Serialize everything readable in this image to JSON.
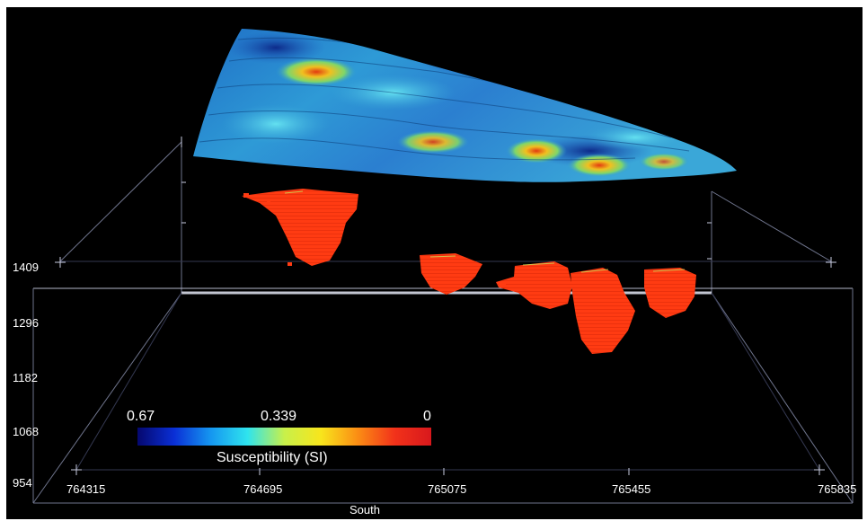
{
  "figure": {
    "z_axis": {
      "ticks": [
        "1409",
        "1296",
        "1182",
        "1068",
        "954"
      ]
    },
    "x_axis": {
      "ticks": [
        "764315",
        "764695",
        "765075",
        "765455",
        "765835"
      ],
      "label": "South"
    },
    "colorbar": {
      "label": "Susceptibility (SI)",
      "max_label": "0.67",
      "mid_label": "0.339",
      "min_label": "0",
      "colors": [
        "#05086e",
        "#0a2fd6",
        "#1597f0",
        "#2fe4ee",
        "#c8f04a",
        "#f8e51c",
        "#fb8d14",
        "#f2321a",
        "#d8181c"
      ]
    },
    "surface_colors": {
      "base": "#2c86d8",
      "low": "#123a9a",
      "mid": "#45c6ee",
      "high": "#e8b020"
    },
    "body_color": "#ff3b12",
    "box_color": "#8a8fa8"
  }
}
